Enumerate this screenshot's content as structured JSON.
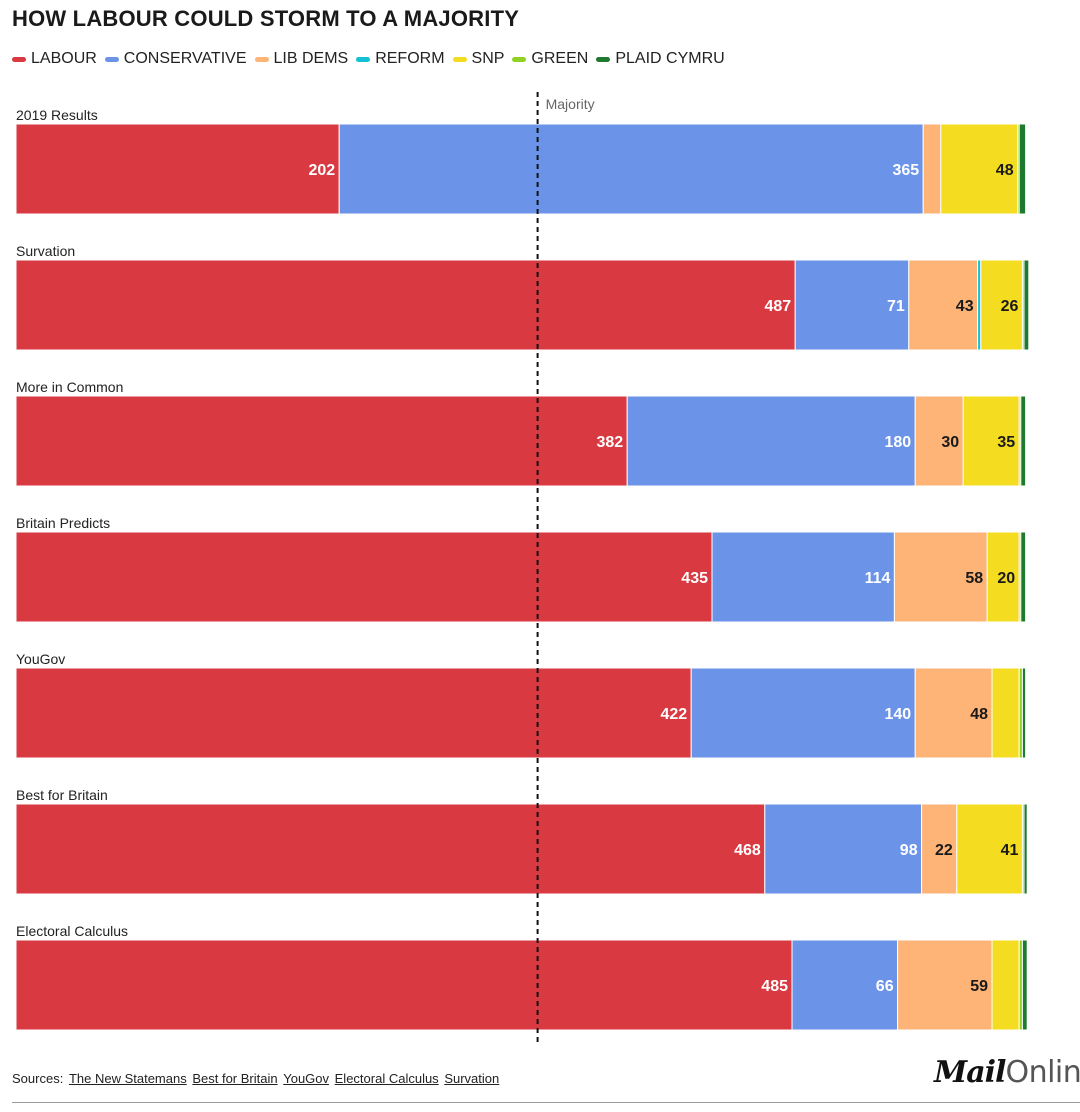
{
  "colors": {
    "labour": "#d93940",
    "conservative": "#6b94e8",
    "lib_dems": "#feb377",
    "reform": "#12c1d1",
    "snp": "#f4dc21",
    "green": "#8fd224",
    "plaid_cymru": "#1f7a2f"
  },
  "chart_data": {
    "type": "bar",
    "orientation": "horizontal",
    "stacked": true,
    "title": "HOW LABOUR COULD STORM TO A MAJORITY",
    "legend_placement": "top-left",
    "grid": false,
    "xlim": [
      0,
      650
    ],
    "reference_line": {
      "label": "Majority",
      "value": 326
    },
    "parties": [
      "LABOUR",
      "CONSERVATIVE",
      "LIB DEMS",
      "REFORM",
      "SNP",
      "GREEN",
      "PLAID CYMRU"
    ],
    "party_keys": [
      "labour",
      "conservative",
      "lib_dems",
      "reform",
      "snp",
      "green",
      "plaid_cymru"
    ],
    "categories": [
      "2019 Results",
      "Survation",
      "More in Common",
      "Britain Predicts",
      "YouGov",
      "Best for Britain",
      "Electoral Calculus"
    ],
    "series": [
      {
        "name": "LABOUR",
        "values": [
          202,
          487,
          382,
          435,
          422,
          468,
          485
        ]
      },
      {
        "name": "CONSERVATIVE",
        "values": [
          365,
          71,
          180,
          114,
          140,
          98,
          66
        ]
      },
      {
        "name": "LIB DEMS",
        "values": [
          11,
          43,
          30,
          58,
          48,
          22,
          59
        ]
      },
      {
        "name": "REFORM",
        "values": [
          0,
          2,
          0,
          0,
          0,
          0,
          0
        ]
      },
      {
        "name": "SNP",
        "values": [
          48,
          26,
          35,
          20,
          17,
          41,
          17
        ]
      },
      {
        "name": "GREEN",
        "values": [
          1,
          1,
          1,
          1,
          2,
          1,
          2
        ]
      },
      {
        "name": "PLAID CYMRU",
        "values": [
          4,
          3,
          3,
          3,
          2,
          2,
          3
        ]
      }
    ]
  },
  "footer": {
    "sources_label": "Sources:",
    "sources": [
      "The New Statemans",
      "Best for Britain",
      "YouGov",
      "Electoral Calculus",
      "Survation"
    ]
  },
  "logo": {
    "mail": "Mail",
    "online": "Online"
  }
}
